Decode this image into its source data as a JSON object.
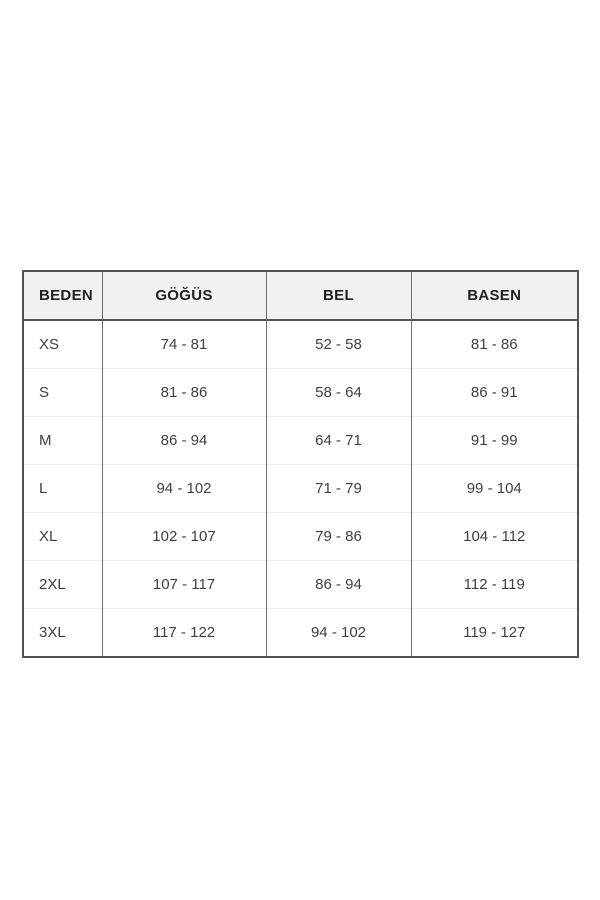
{
  "chart_data": {
    "type": "table",
    "headers": [
      "BEDEN",
      "GÖĞÜS",
      "BEL",
      "BASEN"
    ],
    "rows": [
      [
        "XS",
        "74 - 81",
        "52 - 58",
        "81 - 86"
      ],
      [
        "S",
        "81 - 86",
        "58 - 64",
        "86 - 91"
      ],
      [
        "M",
        "86 - 94",
        "64 - 71",
        "91 - 99"
      ],
      [
        "L",
        "94 - 102",
        "71 - 79",
        "99 - 104"
      ],
      [
        "XL",
        "102 - 107",
        "79 - 86",
        "104 - 112"
      ],
      [
        "2XL",
        "107 - 117",
        "86 - 94",
        "112 - 119"
      ],
      [
        "3XL",
        "117 - 122",
        "94 - 102",
        "119 - 127"
      ]
    ],
    "layout_hints": {
      "grid": "on",
      "header_row": true,
      "first_column_left_aligned": true
    }
  },
  "colors": {
    "page-bg": "#ffffff",
    "header-bg": "#f1f1f1",
    "header-text": "#212121",
    "cell-text": "#3f3f3f",
    "outer-border": "#545454",
    "column-border": "#6e6e6e",
    "row-border": "#eaeaea"
  }
}
